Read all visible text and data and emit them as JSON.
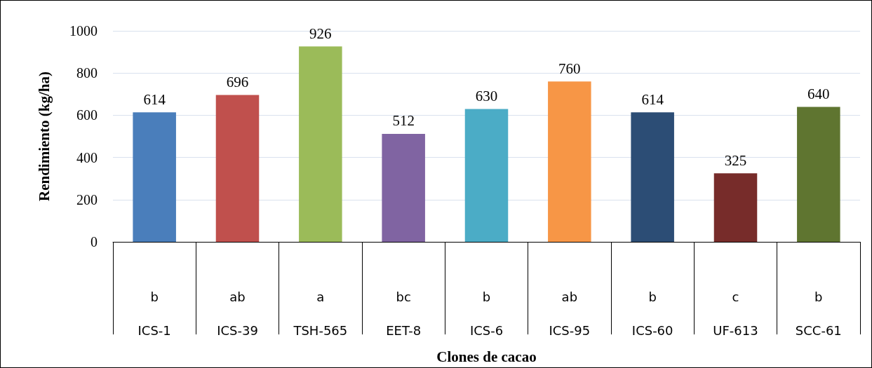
{
  "chart_data": {
    "type": "bar",
    "xlabel": "Clones de cacao",
    "ylabel": "Rendimiento (kg/ha)",
    "categories": [
      "ICS-1",
      "ICS-39",
      "TSH-565",
      "EET-8",
      "ICS-6",
      "ICS-95",
      "ICS-60",
      "UF-613",
      "SCC-61"
    ],
    "values": [
      614,
      696,
      926,
      512,
      630,
      760,
      614,
      325,
      640
    ],
    "colors": [
      "#4a7ebb",
      "#c0504d",
      "#9bbb59",
      "#8064a2",
      "#4bacc6",
      "#f79646",
      "#2c4d75",
      "#772c2a",
      "#5f7530"
    ],
    "ylim": [
      0,
      1000
    ],
    "yticks": [
      0,
      200,
      400,
      600,
      800,
      1000
    ],
    "grid": "y",
    "data_labels": true,
    "annotations": [
      "b",
      "ab",
      "a",
      "bc",
      "b",
      "ab",
      "b",
      "c",
      "b"
    ]
  }
}
